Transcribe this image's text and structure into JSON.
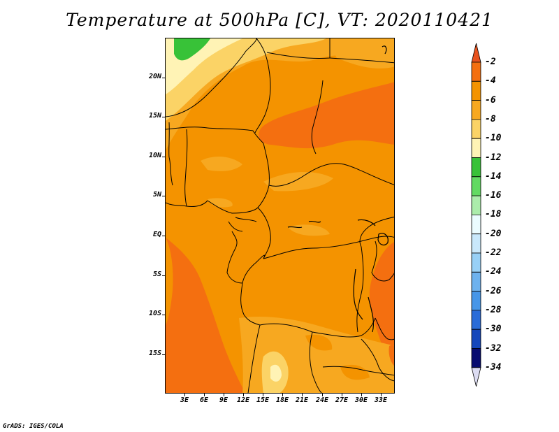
{
  "title": "Temperature at 500hPa [C], VT: 2020110421",
  "credit": "GrADS: IGES/COLA",
  "map": {
    "lat_labels": [
      "20N",
      "15N",
      "10N",
      "5N",
      "EQ",
      "5S",
      "10S",
      "15S"
    ],
    "lon_labels": [
      "3E",
      "6E",
      "9E",
      "12E",
      "15E",
      "18E",
      "21E",
      "24E",
      "27E",
      "30E",
      "33E"
    ]
  },
  "colorbar": {
    "labels": [
      "-2",
      "-4",
      "-6",
      "-8",
      "-10",
      "-12",
      "-14",
      "-16",
      "-18",
      "-20",
      "-22",
      "-24",
      "-26",
      "-28",
      "-30",
      "-32",
      "-34"
    ],
    "colors": [
      "#e8521e",
      "#f46f10",
      "#f49300",
      "#f7a820",
      "#fbd366",
      "#fff3b5",
      "#38c238",
      "#62da62",
      "#abecab",
      "#ebfcff",
      "#c9e8fb",
      "#98d0f6",
      "#6eb2ee",
      "#4796e8",
      "#2a6cd8",
      "#1447bb",
      "#070c70",
      "#dcdcf2"
    ]
  },
  "palette": {
    "c2": "#e8521e",
    "c4": "#f46f10",
    "c6": "#f49300",
    "c8": "#f7a820",
    "c10": "#fbd366",
    "c12": "#fff3b5",
    "c14": "#38c238"
  }
}
